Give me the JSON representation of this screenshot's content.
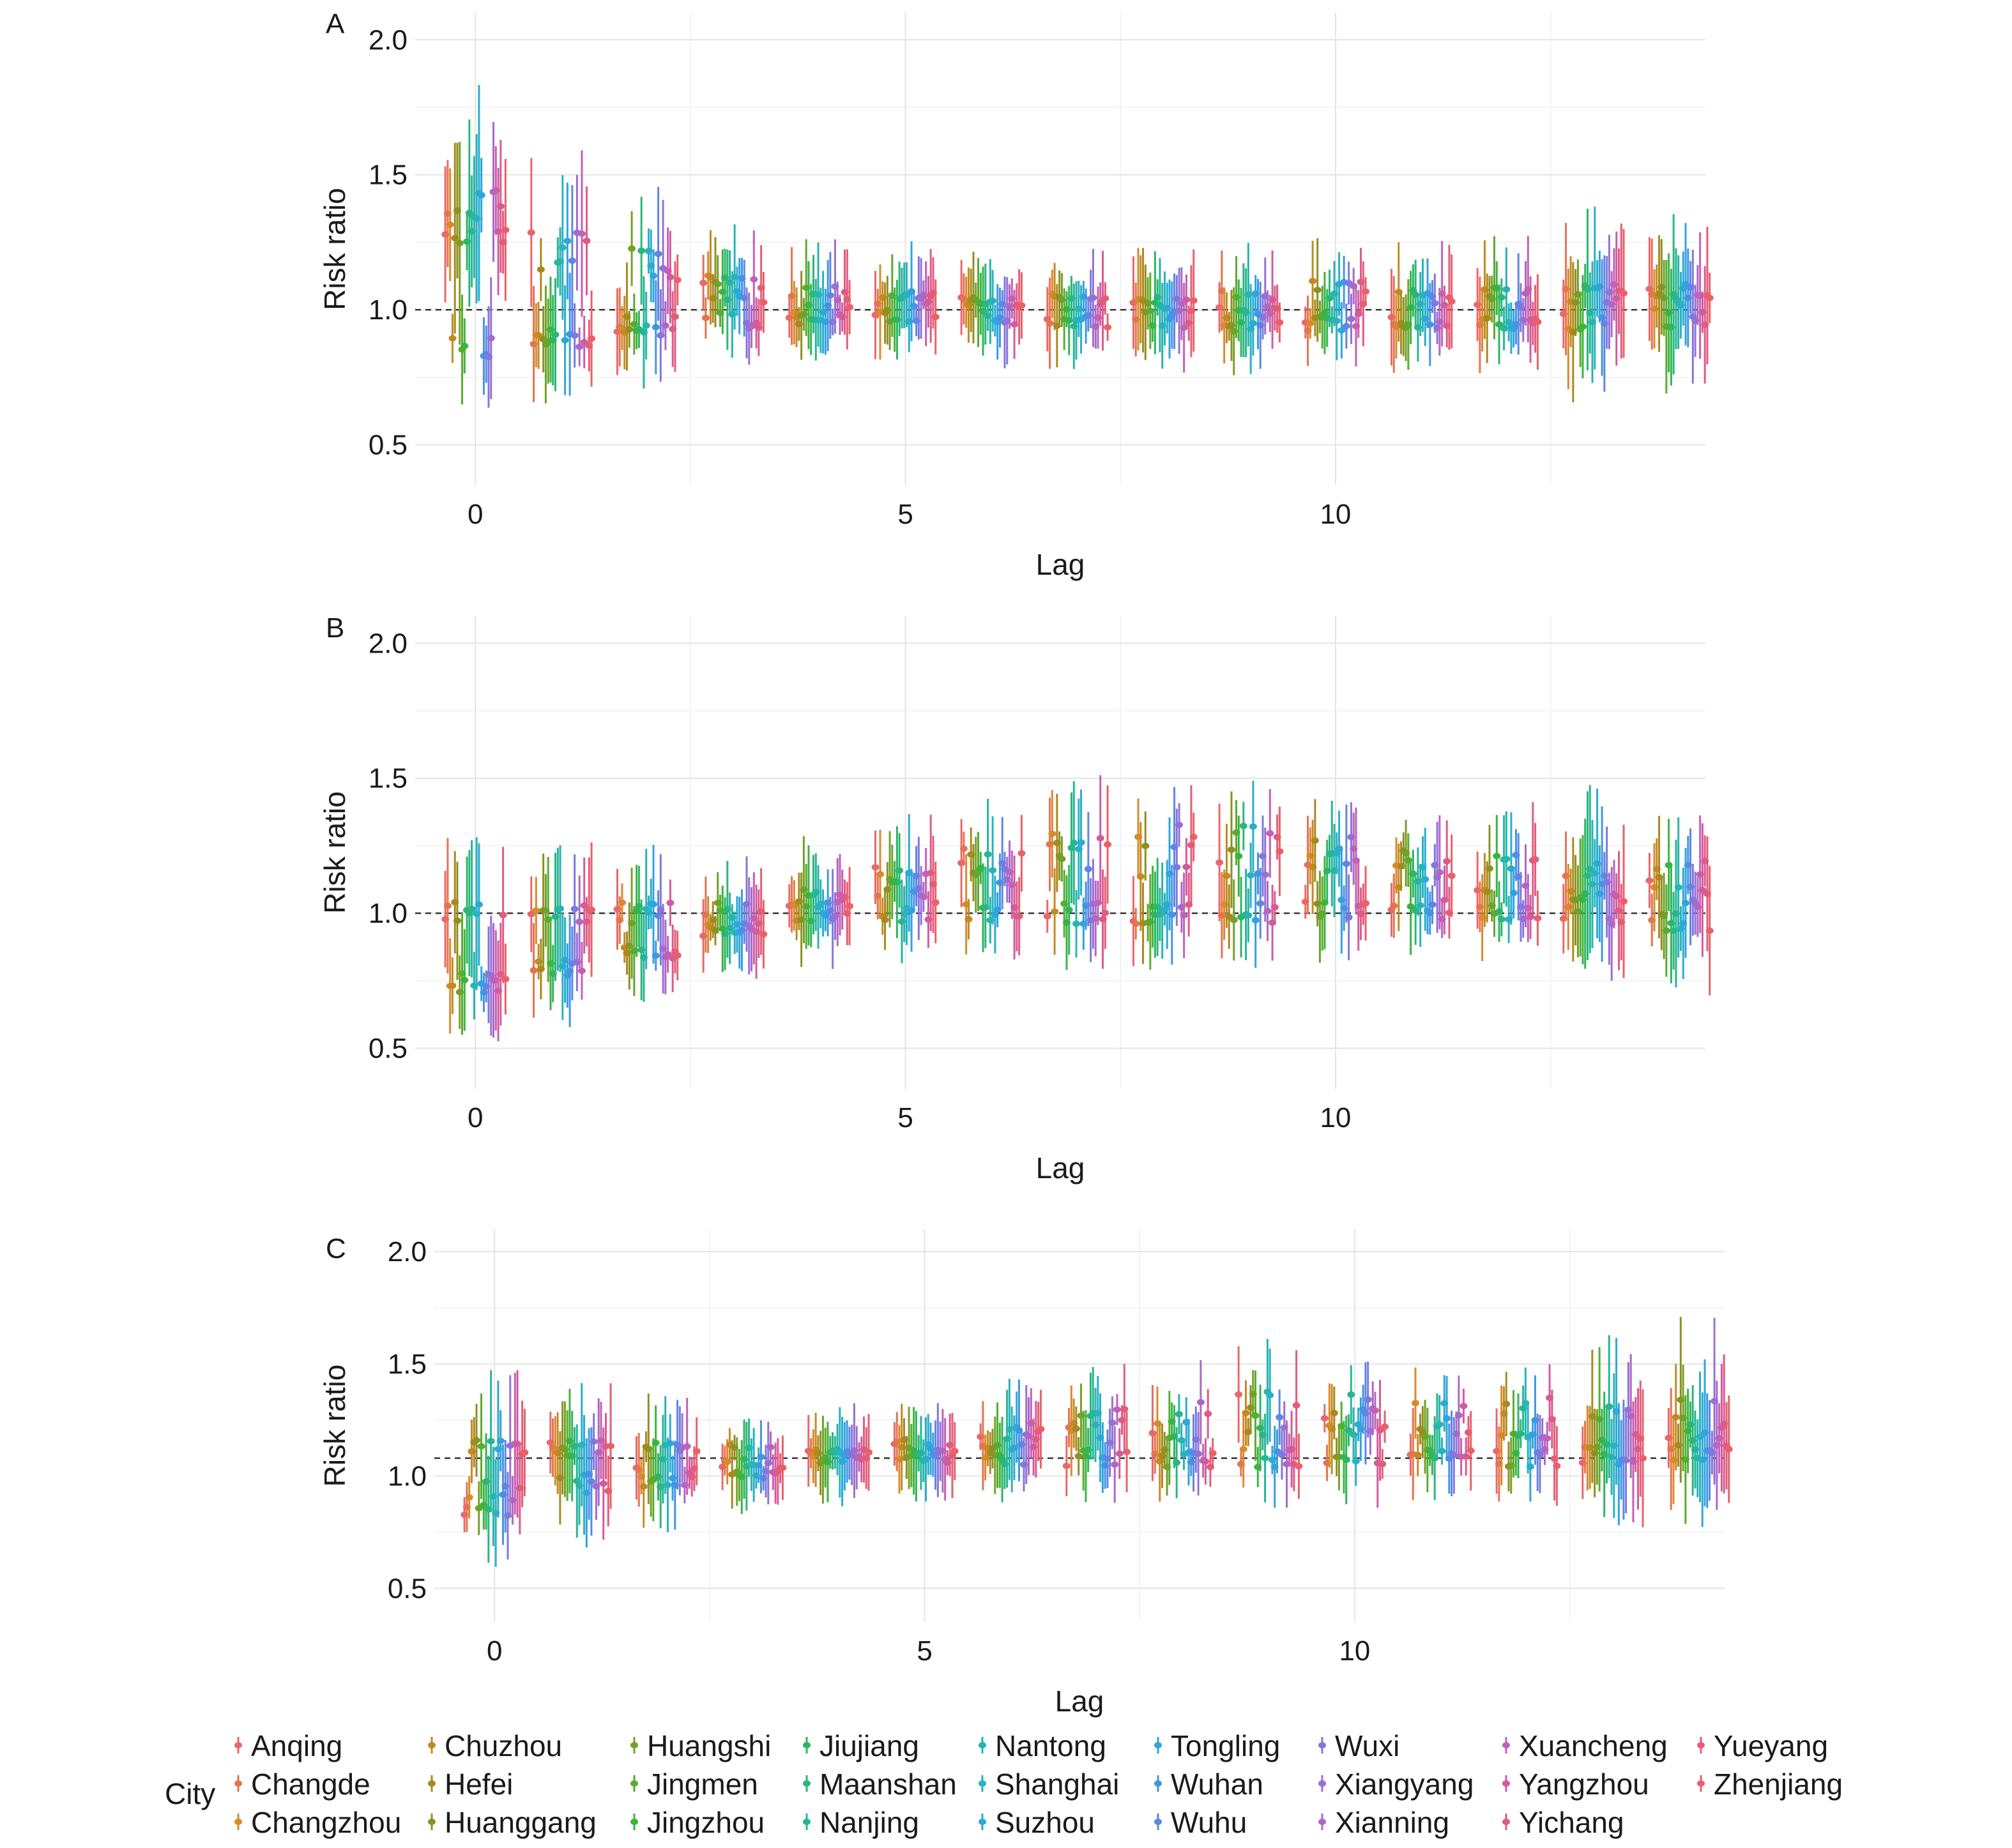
{
  "figure": {
    "y_axis_title": "Risk ratio",
    "x_axis_title": "Lag",
    "legend_title": "City"
  },
  "chart_data": [
    {
      "type": "scatter",
      "panel": "A",
      "xlabel": "Lag",
      "ylabel": "Risk ratio",
      "xlim": [
        -0.7,
        14.3
      ],
      "ylim": [
        0.35,
        2.1
      ],
      "x_ticks": [
        0,
        5,
        10
      ],
      "y_ticks": [
        0.5,
        1.0,
        1.5,
        2.0
      ],
      "reference_line": 1.0,
      "grid": true,
      "lags": [
        0,
        1,
        2,
        3,
        4,
        5,
        6,
        7,
        8,
        9,
        10,
        11,
        12,
        13,
        14
      ],
      "summary_rr": [
        1.28,
        1.15,
        1.08,
        1.05,
        1.04,
        1.03,
        1.02,
        1.02,
        1.01,
        1.01,
        1.02,
        1.01,
        1.02,
        1.03,
        1.03
      ],
      "upper_group_shift": [
        0.13,
        0.11,
        0.12,
        0.08,
        0.04,
        0.03,
        0.02,
        0.03,
        0.03,
        0.05,
        0.07,
        0.05,
        0.05,
        0.05,
        0.05
      ],
      "lower_group_rr": [
        0.86,
        0.9,
        0.94,
        0.97,
        0.98,
        0.98,
        0.98,
        0.97,
        0.96,
        0.95,
        0.95,
        0.95,
        0.96,
        0.95,
        0.97
      ]
    },
    {
      "type": "scatter",
      "panel": "B",
      "xlabel": "Lag",
      "ylabel": "Risk ratio",
      "xlim": [
        -0.7,
        14.3
      ],
      "ylim": [
        0.35,
        2.1
      ],
      "x_ticks": [
        0,
        5,
        10
      ],
      "y_ticks": [
        0.5,
        1.0,
        1.5,
        2.0
      ],
      "reference_line": 1.0,
      "grid": true,
      "lags": [
        0,
        1,
        2,
        3,
        4,
        5,
        6,
        7,
        8,
        9,
        10,
        11,
        12,
        13,
        14
      ],
      "summary_rr": [
        0.72,
        0.78,
        0.84,
        0.92,
        1.03,
        1.08,
        1.12,
        1.14,
        1.16,
        1.17,
        1.16,
        1.12,
        1.1,
        1.07,
        1.0
      ],
      "upper_group_shift": [
        0.05,
        0.04,
        0.03,
        0.03,
        0.05,
        0.07,
        0.1,
        0.12,
        0.13,
        0.13,
        0.12,
        0.11,
        0.1,
        0.09,
        0.15
      ],
      "lower_group_rr": [
        1.01,
        1.0,
        1.0,
        1.0,
        1.0,
        1.0,
        1.0,
        1.0,
        1.0,
        1.0,
        1.01,
        1.01,
        1.0,
        0.99,
        0.97
      ]
    },
    {
      "type": "scatter",
      "panel": "C",
      "xlabel": "Lag",
      "ylabel": "Risk ratio",
      "xlim": [
        -0.7,
        14.3
      ],
      "ylim": [
        0.35,
        2.1
      ],
      "x_ticks": [
        0,
        5,
        10
      ],
      "y_ticks": [
        0.5,
        1.0,
        1.5,
        2.0
      ],
      "reference_line": 1.08,
      "grid": true,
      "lags": [
        0,
        1,
        2,
        3,
        4,
        5,
        6,
        7,
        8,
        9,
        10,
        11,
        12,
        13,
        14
      ],
      "summary_rr": [
        0.85,
        0.93,
        0.97,
        1.0,
        1.07,
        1.1,
        1.14,
        1.17,
        1.19,
        1.21,
        1.22,
        1.21,
        1.2,
        1.17,
        1.15
      ],
      "upper_group_shift": [
        0.1,
        0.08,
        0.06,
        0.05,
        0.04,
        0.05,
        0.08,
        0.1,
        0.12,
        0.13,
        0.13,
        0.13,
        0.12,
        0.12,
        0.15
      ],
      "lower_group_rr": [
        1.12,
        1.12,
        1.11,
        1.1,
        1.09,
        1.09,
        1.09,
        1.08,
        1.08,
        1.08,
        1.08,
        1.08,
        1.08,
        1.09,
        1.1
      ]
    }
  ],
  "legend": {
    "title": "City",
    "cities": [
      {
        "name": "Anqing",
        "color": "#e8686b"
      },
      {
        "name": "Changde",
        "color": "#e57350"
      },
      {
        "name": "Changzhou",
        "color": "#d98a2b"
      },
      {
        "name": "Chuzhou",
        "color": "#c48a22"
      },
      {
        "name": "Hefei",
        "color": "#a9881f"
      },
      {
        "name": "Huanggang",
        "color": "#8e9022"
      },
      {
        "name": "Huangshi",
        "color": "#74a027"
      },
      {
        "name": "Jingmen",
        "color": "#58ad2d"
      },
      {
        "name": "Jingzhou",
        "color": "#3bb43e"
      },
      {
        "name": "Jiujiang",
        "color": "#2fb55e"
      },
      {
        "name": "Maanshan",
        "color": "#2bb67c"
      },
      {
        "name": "Nanjing",
        "color": "#26b597"
      },
      {
        "name": "Nantong",
        "color": "#27b5ad"
      },
      {
        "name": "Shanghai",
        "color": "#29b2c0"
      },
      {
        "name": "Suzhou",
        "color": "#2aacd1"
      },
      {
        "name": "Tongling",
        "color": "#2fa4dd"
      },
      {
        "name": "Wuhan",
        "color": "#4196e3"
      },
      {
        "name": "Wuhu",
        "color": "#5e86e4"
      },
      {
        "name": "Wuxi",
        "color": "#7d79dd"
      },
      {
        "name": "Xiangyang",
        "color": "#9870d4"
      },
      {
        "name": "Xianning",
        "color": "#ad68c6"
      },
      {
        "name": "Xuancheng",
        "color": "#c460b5"
      },
      {
        "name": "Yangzhou",
        "color": "#d15ba0"
      },
      {
        "name": "Yichang",
        "color": "#dd5a8b"
      },
      {
        "name": "Yueyang",
        "color": "#e45c77"
      },
      {
        "name": "Zhenjiang",
        "color": "#e9606a"
      }
    ]
  }
}
